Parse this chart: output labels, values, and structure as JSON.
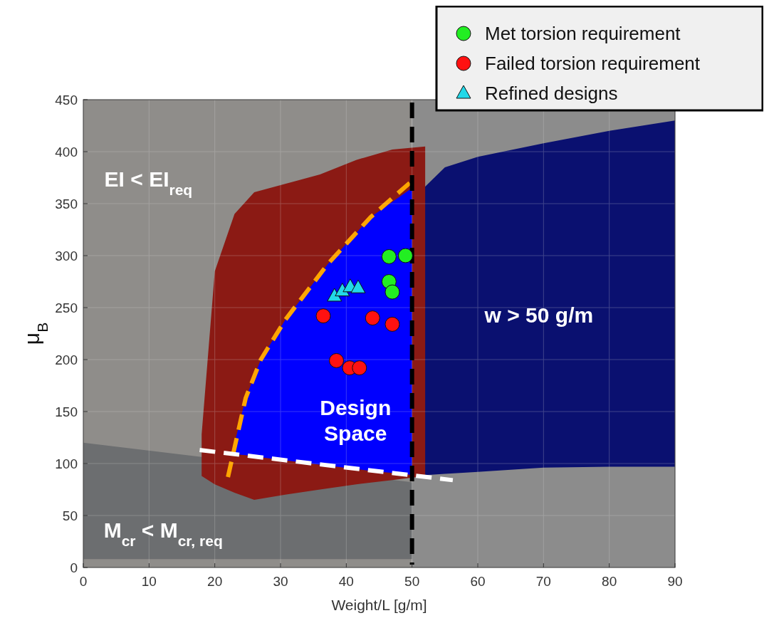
{
  "chart_data": {
    "type": "scatter",
    "xlabel": "Weight/L [g/m]",
    "ylabel": "μ$_{B}$",
    "xlim": [
      0,
      90
    ],
    "ylim": [
      0,
      450
    ],
    "xticks": [
      0,
      10,
      20,
      30,
      40,
      50,
      60,
      70,
      80,
      90
    ],
    "yticks": [
      0,
      50,
      100,
      150,
      200,
      250,
      300,
      350,
      400,
      450
    ],
    "grid": true,
    "legend": "top right",
    "bands": [
      {
        "axis": "x",
        "from": 0,
        "to": 50,
        "color": "#8f8d8a"
      },
      {
        "axis": "x",
        "from": 50,
        "to": 90,
        "color": "#8c8c8c"
      }
    ],
    "ref_lines": [
      {
        "axis": "x",
        "value": 50,
        "color": "#000000",
        "line_style": "dashed"
      }
    ],
    "series": [
      {
        "type": "line",
        "color": "#6c6e70",
        "x": [
          0,
          50
        ],
        "values": [
          null,
          null
        ],
        "upper": [
          120,
          82
        ],
        "lower": [
          8,
          8
        ]
      },
      {
        "type": "line",
        "color": "#0a1070",
        "x": [
          50,
          55,
          60,
          70,
          80,
          90
        ],
        "values": [
          null,
          null,
          null,
          null,
          null,
          null
        ],
        "upper": [
          354,
          385,
          395,
          408,
          420,
          430
        ],
        "lower": [
          88,
          90,
          92,
          96,
          97,
          97
        ]
      },
      {
        "type": "line",
        "color": "#8b1a14",
        "x": [
          18,
          20,
          23,
          26,
          30.7,
          36,
          41.5,
          47,
          52
        ],
        "values": [
          null,
          null,
          null,
          null,
          null,
          null,
          null,
          null,
          null
        ],
        "upper": [
          128,
          285,
          340,
          361,
          369,
          378,
          392,
          402,
          405
        ],
        "lower": [
          88,
          80,
          72,
          65,
          70,
          75,
          80,
          84,
          88
        ]
      },
      {
        "type": "line",
        "color": "#0000ff",
        "x": [
          22.6,
          24.7,
          27,
          30.7,
          37.2,
          43.7,
          50
        ],
        "values": [
          null,
          null,
          null,
          null,
          null,
          null,
          null
        ],
        "upper": [
          109,
          163,
          200,
          238,
          292,
          337,
          365
        ],
        "lower": [
          109,
          108,
          106,
          103,
          98,
          93,
          89
        ]
      },
      {
        "type": "line",
        "color": "#ffa500",
        "line_style": "dashed",
        "x": [
          22,
          24.7,
          27,
          30.7,
          37.2,
          43.7,
          50.2
        ],
        "values": [
          87,
          163,
          200,
          238,
          292,
          337,
          373
        ]
      },
      {
        "type": "line",
        "color": "#ffffff",
        "line_style": "dashed",
        "x": [
          17.7,
          56.2
        ],
        "values": [
          113,
          84
        ]
      },
      {
        "name": "Met torsion requirement",
        "color": "#22ee22",
        "marker": "circle",
        "x": [
          46.5,
          49,
          46.5,
          47
        ],
        "values": [
          299,
          300,
          275,
          265
        ]
      },
      {
        "name": "Failed torsion requirement",
        "color": "#ff1111",
        "marker": "circle",
        "x": [
          36.5,
          44,
          47,
          38.5,
          40.5,
          42
        ],
        "values": [
          242,
          240,
          234,
          199,
          192,
          192
        ]
      },
      {
        "name": "Refined designs",
        "color": "#22d8e8",
        "marker": "triangle",
        "x": [
          38.2,
          39.4,
          40.6,
          41.8
        ],
        "values": [
          261,
          266,
          270,
          269
        ]
      }
    ],
    "annotations": [
      "EI < EI$_{req}$",
      "M$_{cr}$ < M$_{cr, req}$",
      "w > 50 g/m",
      "Design\nSpace"
    ]
  }
}
